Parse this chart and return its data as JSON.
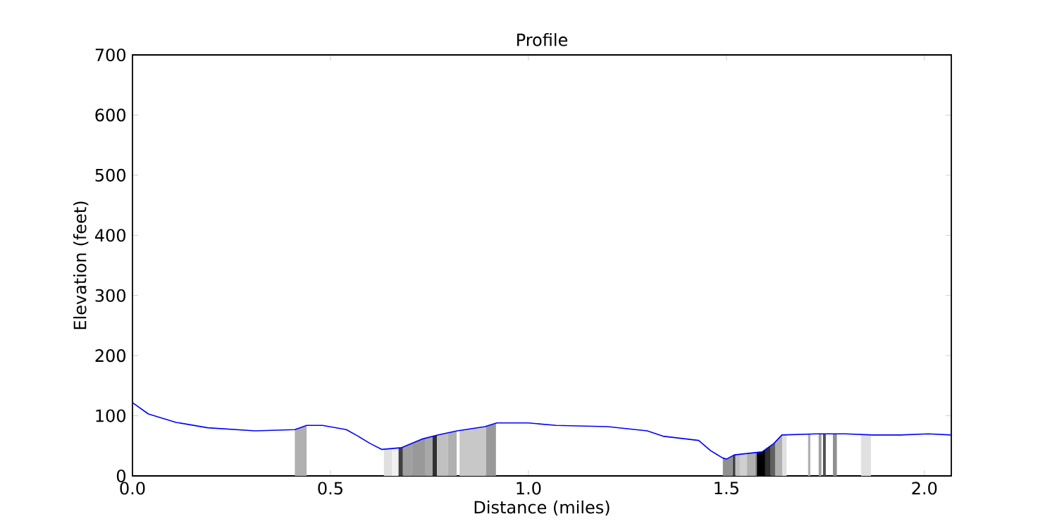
{
  "chart_data": {
    "type": "line",
    "title": "Profile",
    "xlabel": "Distance (miles)",
    "ylabel": "Elevation (feet)",
    "xlim": [
      0,
      2.068
    ],
    "ylim": [
      0,
      700
    ],
    "xticks": [
      {
        "value": 0,
        "label": "0.0"
      },
      {
        "value": 0.5,
        "label": "0.5"
      },
      {
        "value": 1,
        "label": "1.0"
      },
      {
        "value": 1.5,
        "label": "1.5"
      },
      {
        "value": 2,
        "label": "2.0"
      }
    ],
    "yticks": [
      0,
      100,
      200,
      300,
      400,
      500,
      600,
      700
    ],
    "x": [
      0,
      0.04,
      0.11,
      0.19,
      0.31,
      0.41,
      0.44,
      0.48,
      0.54,
      0.57,
      0.6,
      0.63,
      0.68,
      0.73,
      0.77,
      0.82,
      0.89,
      0.92,
      1.0,
      1.07,
      1.2,
      1.3,
      1.34,
      1.43,
      1.46,
      1.49,
      1.5,
      1.52,
      1.59,
      1.62,
      1.64,
      1.73,
      1.8,
      1.87,
      1.94,
      2.01,
      2.068
    ],
    "series": [
      {
        "color": "#0000ff",
        "values": [
          122,
          103,
          89,
          80,
          75,
          77,
          84,
          84,
          77,
          66,
          54,
          44,
          47,
          61,
          68,
          75,
          82,
          88,
          88,
          84,
          82,
          75,
          66,
          59,
          42,
          30,
          28,
          35,
          40,
          54,
          68,
          70,
          70,
          68,
          68,
          70,
          68
        ]
      }
    ],
    "bands": [
      {
        "axis": "x",
        "from": 0.41,
        "to": 0.44,
        "color": "#b0b0b0"
      },
      {
        "axis": "x",
        "from": 0.635,
        "to": 0.655,
        "color": "#e0e0e0"
      },
      {
        "axis": "x",
        "from": 0.655,
        "to": 0.672,
        "color": "#f0f0f0"
      },
      {
        "axis": "x",
        "from": 0.672,
        "to": 0.683,
        "color": "#404040"
      },
      {
        "axis": "x",
        "from": 0.683,
        "to": 0.705,
        "color": "#a0a0a0"
      },
      {
        "axis": "x",
        "from": 0.705,
        "to": 0.74,
        "color": "#999999"
      },
      {
        "axis": "x",
        "from": 0.74,
        "to": 0.758,
        "color": "#a8a8a8"
      },
      {
        "axis": "x",
        "from": 0.758,
        "to": 0.769,
        "color": "#303030"
      },
      {
        "axis": "x",
        "from": 0.769,
        "to": 0.797,
        "color": "#c0c0c0"
      },
      {
        "axis": "x",
        "from": 0.797,
        "to": 0.819,
        "color": "#b0b0b0"
      },
      {
        "axis": "x",
        "from": 0.826,
        "to": 0.893,
        "color": "#c8c8c8"
      },
      {
        "axis": "x",
        "from": 0.893,
        "to": 0.918,
        "color": "#999999"
      },
      {
        "axis": "x",
        "from": 1.491,
        "to": 1.516,
        "color": "#909090"
      },
      {
        "axis": "x",
        "from": 1.516,
        "to": 1.523,
        "color": "#404040"
      },
      {
        "axis": "x",
        "from": 1.523,
        "to": 1.534,
        "color": "#c0c0c0"
      },
      {
        "axis": "x",
        "from": 1.534,
        "to": 1.552,
        "color": "#d0d0d0"
      },
      {
        "axis": "x",
        "from": 1.552,
        "to": 1.573,
        "color": "#b0b0b0"
      },
      {
        "axis": "x",
        "from": 1.573,
        "to": 1.577,
        "color": "#888888"
      },
      {
        "axis": "x",
        "from": 1.577,
        "to": 1.598,
        "color": "#000000"
      },
      {
        "axis": "x",
        "from": 1.598,
        "to": 1.612,
        "color": "#303030"
      },
      {
        "axis": "x",
        "from": 1.612,
        "to": 1.623,
        "color": "#606060"
      },
      {
        "axis": "x",
        "from": 1.623,
        "to": 1.641,
        "color": "#b0b0b0"
      },
      {
        "axis": "x",
        "from": 1.641,
        "to": 1.652,
        "color": "#e0e0e0"
      },
      {
        "axis": "x",
        "from": 1.706,
        "to": 1.712,
        "color": "#b0b0b0"
      },
      {
        "axis": "x",
        "from": 1.733,
        "to": 1.74,
        "color": "#a0a0a0"
      },
      {
        "axis": "x",
        "from": 1.744,
        "to": 1.751,
        "color": "#505050"
      },
      {
        "axis": "x",
        "from": 1.769,
        "to": 1.779,
        "color": "#909090"
      },
      {
        "axis": "x",
        "from": 1.84,
        "to": 1.865,
        "color": "#e0e0e0"
      }
    ]
  }
}
